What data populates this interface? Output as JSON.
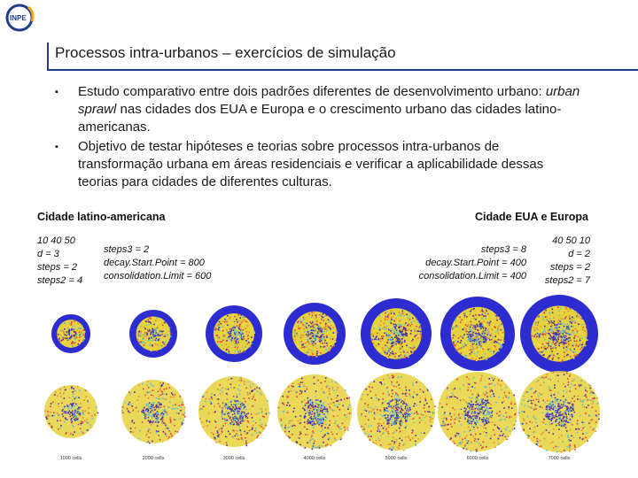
{
  "title": "Processos intra-urbanos – exercícios de simulação",
  "bullets": [
    {
      "pre": "Estudo comparativo entre dois padrões diferentes de desenvolvimento urbano: ",
      "em": "urban sprawl",
      "post": " nas cidades dos EUA e Europa e o crescimento urbano das cidades latino-americanas."
    },
    {
      "pre": "Objetivo de testar hipóteses e teorias sobre processos intra-urbanos de transformação urbana em áreas residenciais e verificar a aplicabilidade dessas teorias para cidades de diferentes culturas.",
      "em": "",
      "post": ""
    }
  ],
  "left_label": "Cidade latino-americana",
  "right_label": "Cidade EUA e Europa",
  "left_params_a": [
    "10 40 50",
    "d = 3",
    "steps = 2",
    "steps2 = 4"
  ],
  "left_params_b": [
    "steps3 = 2",
    "decay.Start.Point = 800",
    "consolidation.Limit = 600"
  ],
  "right_params_b": [
    "steps3 = 8",
    "decay.Start.Point = 400",
    "consolidation.Limit = 400"
  ],
  "right_params_a": [
    "40 50 10",
    "d = 2",
    "steps = 2",
    "steps2 = 7"
  ],
  "captions": [
    "1000 cells",
    "2000 cells",
    "3000 cells",
    "4000 cells",
    "5000 cells",
    "6000 cells",
    "7000 cells"
  ],
  "colors": {
    "accent": "#1f3d8a",
    "ring_blue": "#2c2cd0",
    "core_purple": "#4a2aa8",
    "noise_yellow": "#e6d23c",
    "noise_orange": "#e08a3c",
    "noise_cyan": "#5fc0d0"
  }
}
